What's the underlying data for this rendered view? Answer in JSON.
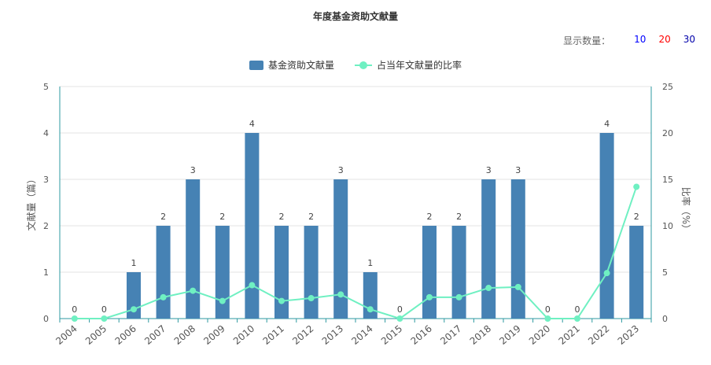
{
  "title": "年度基金资助文献量",
  "display_count": {
    "label": "显示数量：",
    "options": [
      {
        "label": "10",
        "color": "#0000ff"
      },
      {
        "label": "20",
        "color": "#ff0000"
      },
      {
        "label": "30",
        "color": "#0000aa"
      }
    ]
  },
  "legend": {
    "bar_label": "基金资助文献量",
    "line_label": "占当年文献量的比率"
  },
  "chart_data": {
    "type": "bar",
    "categories": [
      "2004",
      "2005",
      "2006",
      "2007",
      "2008",
      "2009",
      "2010",
      "2011",
      "2012",
      "2013",
      "2014",
      "2015",
      "2016",
      "2017",
      "2018",
      "2019",
      "2020",
      "2021",
      "2022",
      "2023"
    ],
    "series": [
      {
        "name": "基金资助文献量",
        "type": "bar",
        "axis": "left",
        "color": "#4682b4",
        "values": [
          0,
          0,
          1,
          2,
          3,
          2,
          4,
          2,
          2,
          3,
          1,
          0,
          2,
          2,
          3,
          3,
          0,
          0,
          4,
          2
        ]
      },
      {
        "name": "占当年文献量的比率",
        "type": "line",
        "axis": "right",
        "color": "#6ff0c2",
        "values": [
          0,
          0,
          1.0,
          2.3,
          3.0,
          1.9,
          3.6,
          1.9,
          2.2,
          2.6,
          1.0,
          0,
          2.3,
          2.3,
          3.3,
          3.4,
          0,
          0,
          4.9,
          14.2
        ]
      }
    ],
    "ylabel": "文献量（篇）",
    "y2label": "比率（%）",
    "ylim": [
      0,
      5
    ],
    "y2lim": [
      0,
      25
    ],
    "yticks": [
      "0",
      "1",
      "2",
      "3",
      "4",
      "5"
    ],
    "y2ticks": [
      "0",
      "5",
      "10",
      "15",
      "20",
      "25"
    ],
    "grid": true,
    "legend_position": "top-center"
  }
}
